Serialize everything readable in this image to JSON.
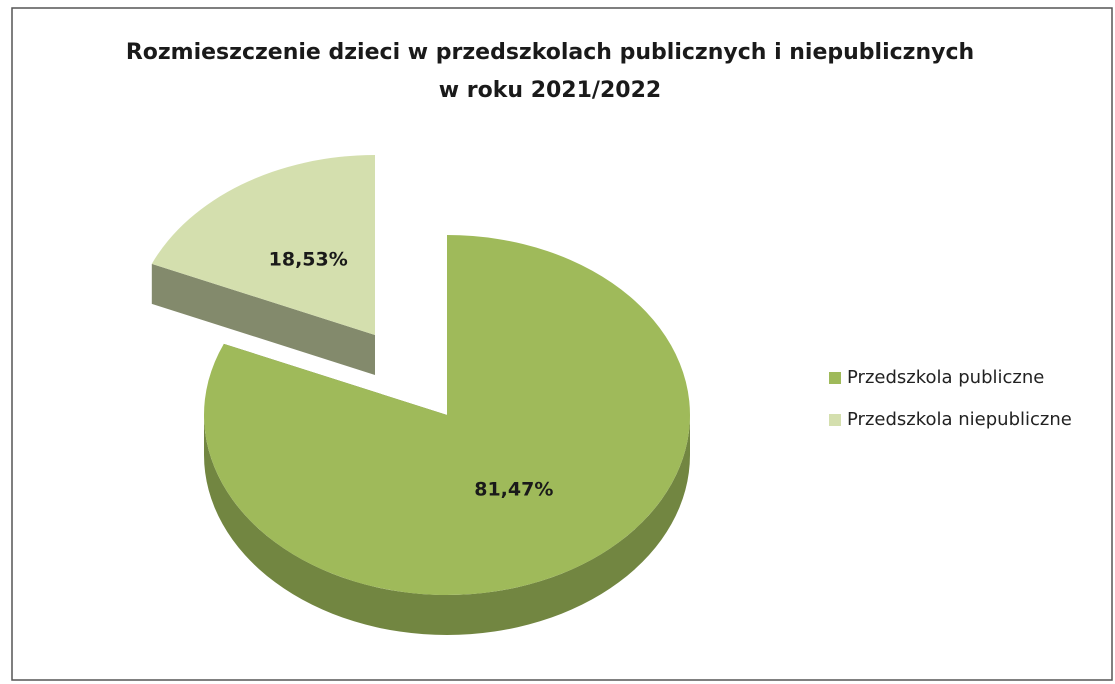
{
  "chart_data": {
    "type": "pie",
    "title": "Rozmieszczenie dzieci w przedszkolach publicznych i niepublicznych w roku 2021/2022",
    "categories": [
      "Przedszkola publiczne",
      "Przedszkola niepubliczne"
    ],
    "values": [
      81.47,
      18.53
    ],
    "value_labels": [
      "81,47%",
      "18,53%"
    ],
    "colors": [
      "#9fba5a",
      "#d4dfae"
    ],
    "legend": "right"
  }
}
